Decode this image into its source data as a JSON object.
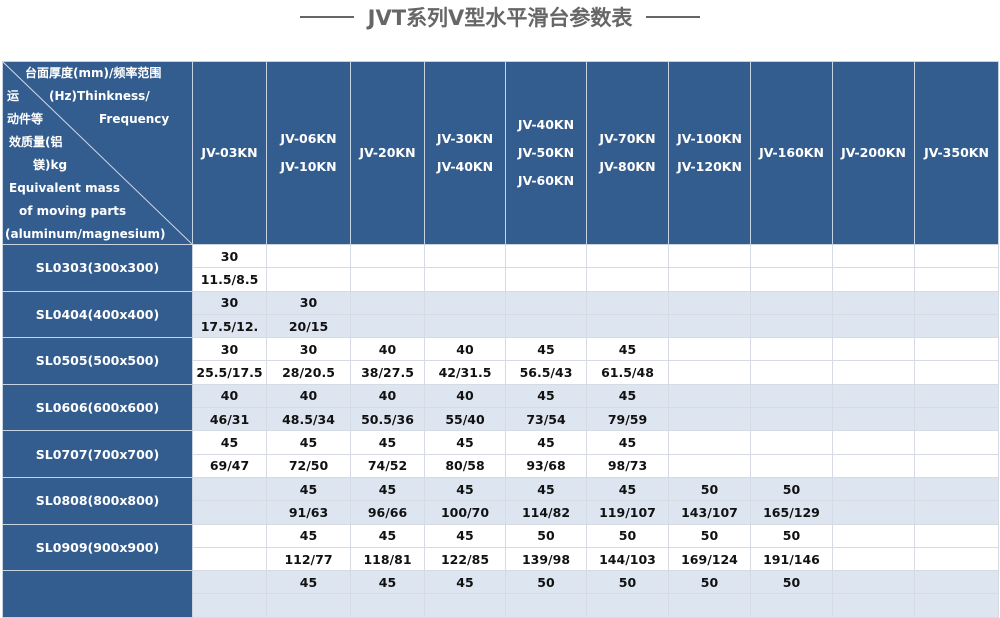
{
  "title": "JVT系列V型水平滑台参数表",
  "corner": {
    "top_lines": [
      "台面厚度(mm)/频率范围",
      "(Hz)Thinkness/",
      "Frequency"
    ],
    "bottom_lines": [
      "运",
      "动件等",
      "效质量(铝",
      "镁)kg",
      "Equivalent mass",
      "of moving parts",
      "(aluminum/magnesium)"
    ]
  },
  "columns": [
    [
      "JV-03KN"
    ],
    [
      "JV-06KN",
      "JV-10KN"
    ],
    [
      "JV-20KN"
    ],
    [
      "JV-30KN",
      "JV-40KN"
    ],
    [
      "JV-40KN",
      "JV-50KN",
      "JV-60KN"
    ],
    [
      "JV-70KN",
      "JV-80KN"
    ],
    [
      "JV-100KN",
      "JV-120KN"
    ],
    [
      "JV-160KN"
    ],
    [
      "JV-200KN"
    ],
    [
      "JV-350KN"
    ]
  ],
  "rows": [
    {
      "label": "SL0303(300x300)",
      "thickness": [
        "30",
        "",
        "",
        "",
        "",
        "",
        "",
        "",
        "",
        ""
      ],
      "mass": [
        "11.5/8.5",
        "",
        "",
        "",
        "",
        "",
        "",
        "",
        "",
        ""
      ]
    },
    {
      "label": "SL0404(400x400)",
      "thickness": [
        "30",
        "30",
        "",
        "",
        "",
        "",
        "",
        "",
        "",
        ""
      ],
      "mass": [
        "17.5/12.",
        "20/15",
        "",
        "",
        "",
        "",
        "",
        "",
        "",
        ""
      ]
    },
    {
      "label": "SL0505(500x500)",
      "thickness": [
        "30",
        "30",
        "40",
        "40",
        "45",
        "45",
        "",
        "",
        "",
        ""
      ],
      "mass": [
        "25.5/17.5",
        "28/20.5",
        "38/27.5",
        "42/31.5",
        "56.5/43",
        "61.5/48",
        "",
        "",
        "",
        ""
      ]
    },
    {
      "label": "SL0606(600x600)",
      "thickness": [
        "40",
        "40",
        "40",
        "40",
        "45",
        "45",
        "",
        "",
        "",
        ""
      ],
      "mass": [
        "46/31",
        "48.5/34",
        "50.5/36",
        "55/40",
        "73/54",
        "79/59",
        "",
        "",
        "",
        ""
      ]
    },
    {
      "label": "SL0707(700x700)",
      "thickness": [
        "45",
        "45",
        "45",
        "45",
        "45",
        "45",
        "",
        "",
        "",
        ""
      ],
      "mass": [
        "69/47",
        "72/50",
        "74/52",
        "80/58",
        "93/68",
        "98/73",
        "",
        "",
        "",
        ""
      ]
    },
    {
      "label": "SL0808(800x800)",
      "thickness": [
        "",
        "45",
        "45",
        "45",
        "45",
        "45",
        "50",
        "50",
        "",
        ""
      ],
      "mass": [
        "",
        "91/63",
        "96/66",
        "100/70",
        "114/82",
        "119/107",
        "143/107",
        "165/129",
        "",
        ""
      ]
    },
    {
      "label": "SL0909(900x900)",
      "thickness": [
        "",
        "45",
        "45",
        "45",
        "50",
        "50",
        "50",
        "50",
        "",
        ""
      ],
      "mass": [
        "",
        "112/77",
        "118/81",
        "122/85",
        "139/98",
        "144/103",
        "169/124",
        "191/146",
        "",
        ""
      ]
    },
    {
      "label": "",
      "thickness": [
        "",
        "45",
        "45",
        "45",
        "50",
        "50",
        "50",
        "50",
        "",
        ""
      ],
      "mass": [
        "",
        "",
        "",
        "",
        "",
        "",
        "",
        "",
        "",
        ""
      ]
    }
  ],
  "colors": {
    "header": "#345d8f",
    "alt_row": "#dce5f0",
    "title": "#666666"
  }
}
